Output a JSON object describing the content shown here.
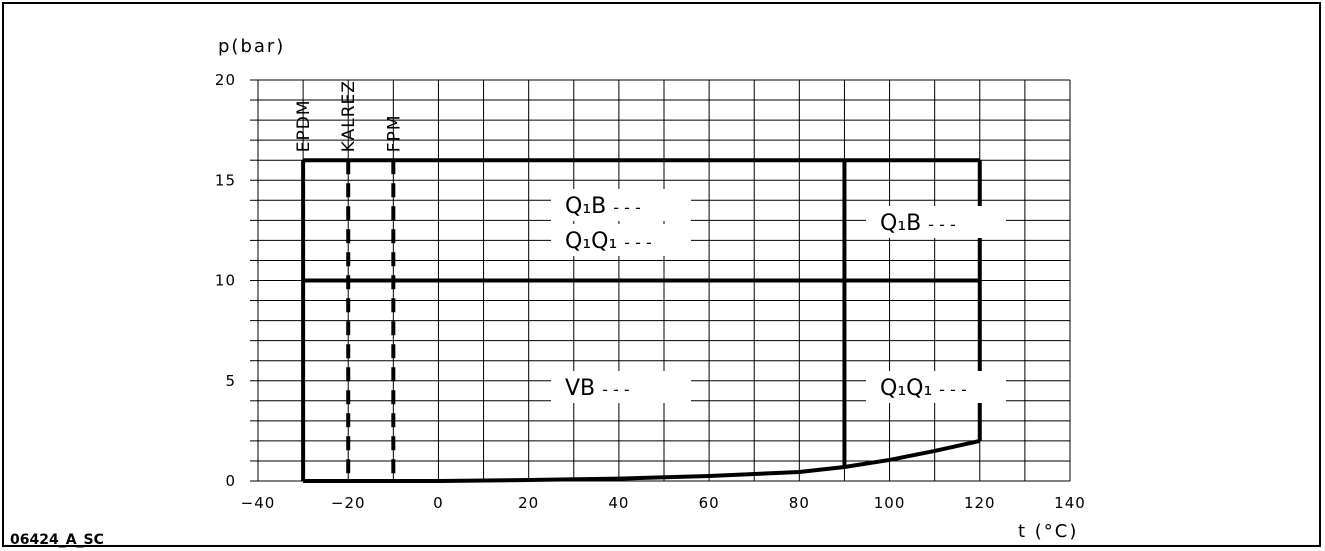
{
  "figure_ref": "06424_A_SC",
  "chart_data": {
    "type": "line",
    "title": "",
    "xlabel": "t (°C)",
    "ylabel": "p(bar)",
    "xlim": [
      -40,
      140
    ],
    "ylim": [
      0,
      20
    ],
    "xticks": [
      -40,
      -20,
      0,
      20,
      40,
      60,
      80,
      100,
      120,
      140
    ],
    "yticks": [
      0,
      5,
      10,
      15,
      20
    ],
    "grid": true,
    "minor_grid": {
      "x_step": 10,
      "y_step": 1
    },
    "elastomer_limits": [
      {
        "name": "EPDM",
        "t_min": -30,
        "style": "solid"
      },
      {
        "name": "KALREZ",
        "t_min": -20,
        "style": "dashed"
      },
      {
        "name": "FPM",
        "t_min": -10,
        "style": "dashed"
      }
    ],
    "series": [
      {
        "name": "Q1B / Q1Q1",
        "x": [
          -30,
          90
        ],
        "y": [
          16,
          16
        ]
      },
      {
        "name": "Q1B / Q1Q1",
        "x": [
          90,
          120
        ],
        "y": [
          16,
          16
        ]
      },
      {
        "name": "VB",
        "x": [
          -30,
          120
        ],
        "y": [
          10,
          10
        ]
      },
      {
        "x": [
          90,
          90
        ],
        "y": [
          16,
          0.7
        ]
      },
      {
        "x": [
          120,
          120
        ],
        "y": [
          16,
          2
        ]
      },
      {
        "x": [
          -30,
          -20,
          0,
          20,
          40,
          60,
          80,
          90,
          100,
          110,
          120
        ],
        "y": [
          0,
          0,
          0,
          0.05,
          0.12,
          0.25,
          0.45,
          0.7,
          1.05,
          1.5,
          2.0
        ]
      }
    ],
    "region_labels": [
      {
        "text": "Q₁B",
        "suffix": "---"
      },
      {
        "text": "Q₁Q₁",
        "suffix": "---"
      },
      {
        "text": "Q₁B",
        "suffix": "---"
      },
      {
        "text": "VB",
        "suffix": "---"
      },
      {
        "text": "Q₁Q₁",
        "suffix": "---"
      }
    ]
  }
}
